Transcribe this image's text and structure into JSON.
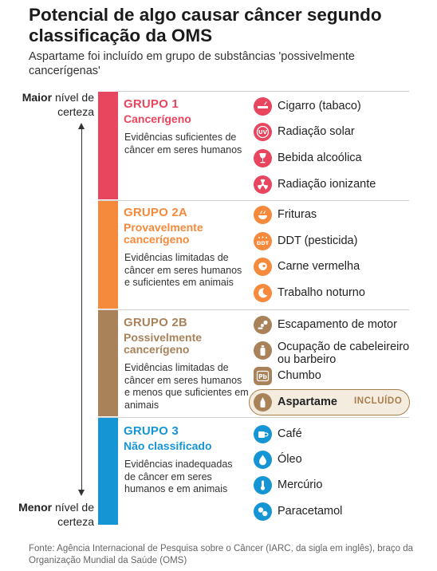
{
  "title": "Potencial de algo causar câncer segundo classificação da OMS",
  "subtitle": "Aspartame foi incluído em grupo de substâncias 'possivelmente cancerígenas'",
  "scale": {
    "top_bold": "Maior",
    "top_rest": " nível de certeza",
    "bottom_bold": "Menor",
    "bottom_rest": " nível de certeza"
  },
  "colors": {
    "group1": "#e8455e",
    "group2a": "#f58a3c",
    "group2b": "#a9825a",
    "group3": "#1695d5"
  },
  "groups": [
    {
      "title": "GRUPO 1",
      "subtitle": "Cancerígeno",
      "description": "Evidências suficientes de câncer em seres humanos",
      "items": [
        {
          "icon": "cigarette-icon",
          "label": "Cigarro (tabaco)"
        },
        {
          "icon": "uv-icon",
          "label": "Radiação solar",
          "icon_text": "UV"
        },
        {
          "icon": "wine-glass-icon",
          "label": "Bebida alcoólica"
        },
        {
          "icon": "radiation-icon",
          "label": "Radiação ionizante"
        }
      ]
    },
    {
      "title": "GRUPO 2A",
      "subtitle": "Provavelmente cancerígeno",
      "description": "Evidências limitadas de câncer em seres humanos e suficientes em animais",
      "items": [
        {
          "icon": "fried-food-icon",
          "label": "Frituras"
        },
        {
          "icon": "pesticide-icon",
          "label": "DDT (pesticida)",
          "icon_text": "DDT"
        },
        {
          "icon": "red-meat-icon",
          "label": "Carne vermelha"
        },
        {
          "icon": "moon-icon",
          "label": "Trabalho noturno"
        }
      ]
    },
    {
      "title": "GRUPO 2B",
      "subtitle": "Possivelmente cancerígeno",
      "description": "Evidências limitadas de câncer em seres humanos e menos que suficientes em animais",
      "items": [
        {
          "icon": "exhaust-icon",
          "label": "Escapamento de motor"
        },
        {
          "icon": "hair-dye-icon",
          "label": "Ocupação de cabeleireiro ou barbeiro"
        },
        {
          "icon": "lead-icon",
          "label": "Chumbo",
          "icon_text": "Pb"
        },
        {
          "icon": "aspartame-icon",
          "label": "Aspartame",
          "badge": "INCLUÍDO"
        }
      ]
    },
    {
      "title": "GRUPO 3",
      "subtitle": "Não classificado",
      "description": "Evidências inadequadas de câncer em seres humanos e em animais",
      "items": [
        {
          "icon": "coffee-icon",
          "label": "Café"
        },
        {
          "icon": "oil-drop-icon",
          "label": "Óleo"
        },
        {
          "icon": "thermometer-icon",
          "label": "Mercúrio"
        },
        {
          "icon": "pills-icon",
          "label": "Paracetamol"
        }
      ]
    }
  ],
  "source": "Fonte: Agência Internacional de Pesquisa sobre o Câncer (IARC, da sigla em inglês), braço da Organização Mundial da Saúde (OMS)"
}
